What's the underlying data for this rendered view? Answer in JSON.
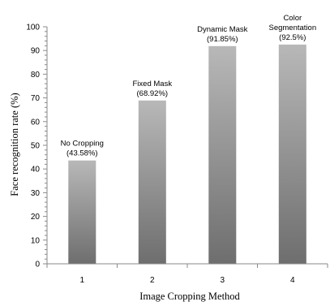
{
  "chart_data": {
    "type": "bar",
    "title": "",
    "xlabel": "Image Cropping Method",
    "ylabel": "Face recognition rate (%)",
    "categories": [
      "1",
      "2",
      "3",
      "4"
    ],
    "values": [
      43.58,
      68.92,
      91.85,
      92.5
    ],
    "bar_labels": [
      [
        "No Cropping",
        "(43.58%)"
      ],
      [
        "Fixed Mask",
        "(68.92%)"
      ],
      [
        "Dynamic Mask",
        "(91.85%)"
      ],
      [
        "Color",
        "Segmentation",
        "(92.5%)"
      ]
    ],
    "ylim": [
      0,
      100
    ],
    "yticks": [
      0,
      10,
      20,
      30,
      40,
      50,
      60,
      70,
      80,
      90,
      100
    ],
    "grid": false,
    "legend": "none",
    "bar_gradient": [
      "#b8b8b8",
      "#6e6e6e"
    ]
  }
}
